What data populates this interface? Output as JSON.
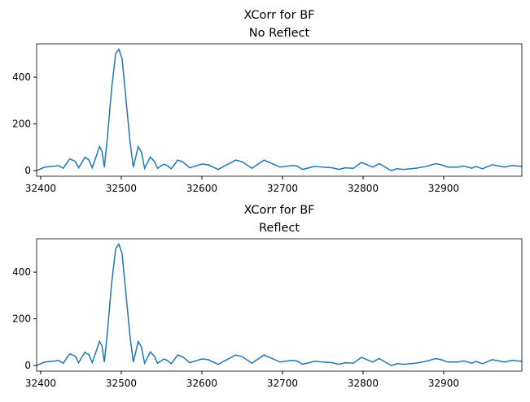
{
  "chart_data": [
    {
      "type": "line",
      "title": "XCorr for BF",
      "subtitle": "No Reflect",
      "x": [
        32395,
        32405,
        32415,
        32422,
        32428,
        32436,
        32443,
        32447,
        32455,
        32460,
        32464,
        32473,
        32476,
        32479,
        32483,
        32488,
        32493,
        32497,
        32501,
        32506,
        32511,
        32515,
        32521,
        32525,
        32529,
        32536,
        32541,
        32545,
        32553,
        32557,
        32562,
        32570,
        32576,
        32585,
        32600,
        32608,
        32620,
        32642,
        32650,
        32662,
        32677,
        32684,
        32697,
        32712,
        32718,
        32725,
        32740,
        32750,
        32762,
        32770,
        32778,
        32788,
        32798,
        32805,
        32812,
        32820,
        32830,
        32835,
        32842,
        32850,
        32865,
        32878,
        32890,
        32897,
        32905,
        32918,
        32925,
        32935,
        32940,
        32948,
        32960,
        32968,
        32975,
        32985,
        32997
      ],
      "series": [
        {
          "name": "xcorr",
          "color": "#1f77b4",
          "values": [
            0,
            15,
            18,
            22,
            10,
            50,
            40,
            12,
            57,
            45,
            12,
            103,
            85,
            15,
            150,
            350,
            500,
            520,
            480,
            300,
            120,
            15,
            103,
            80,
            10,
            58,
            40,
            10,
            28,
            22,
            8,
            45,
            38,
            12,
            28,
            25,
            5,
            45,
            38,
            10,
            45,
            35,
            15,
            22,
            20,
            5,
            18,
            15,
            12,
            5,
            12,
            10,
            35,
            25,
            15,
            30,
            10,
            0,
            8,
            5,
            10,
            18,
            30,
            25,
            15,
            15,
            20,
            10,
            18,
            8,
            25,
            20,
            15,
            22,
            18
          ]
        }
      ],
      "xlim": [
        32395,
        32997
      ],
      "ylim": [
        -24,
        543
      ],
      "xticks": [
        32400,
        32500,
        32600,
        32700,
        32800,
        32900
      ],
      "yticks": [
        0,
        200,
        400
      ]
    },
    {
      "type": "line",
      "title": "XCorr for BF",
      "subtitle": "Reflect",
      "x": [
        32395,
        32405,
        32415,
        32422,
        32428,
        32436,
        32443,
        32447,
        32455,
        32460,
        32464,
        32473,
        32476,
        32479,
        32483,
        32488,
        32493,
        32497,
        32501,
        32506,
        32511,
        32515,
        32521,
        32525,
        32529,
        32536,
        32541,
        32545,
        32553,
        32557,
        32562,
        32570,
        32576,
        32585,
        32600,
        32608,
        32620,
        32642,
        32650,
        32662,
        32677,
        32684,
        32697,
        32712,
        32718,
        32725,
        32740,
        32750,
        32762,
        32770,
        32778,
        32788,
        32798,
        32805,
        32812,
        32820,
        32830,
        32835,
        32842,
        32850,
        32865,
        32878,
        32890,
        32897,
        32905,
        32918,
        32925,
        32935,
        32940,
        32948,
        32960,
        32968,
        32975,
        32985,
        32997
      ],
      "series": [
        {
          "name": "xcorr",
          "color": "#1f77b4",
          "values": [
            0,
            15,
            18,
            22,
            10,
            50,
            40,
            12,
            57,
            45,
            12,
            103,
            85,
            15,
            150,
            350,
            500,
            520,
            480,
            300,
            120,
            15,
            103,
            80,
            10,
            58,
            40,
            10,
            28,
            22,
            8,
            45,
            38,
            12,
            28,
            25,
            5,
            45,
            38,
            10,
            45,
            35,
            15,
            22,
            20,
            5,
            18,
            15,
            12,
            5,
            12,
            10,
            35,
            25,
            15,
            30,
            10,
            0,
            8,
            5,
            10,
            18,
            30,
            25,
            15,
            15,
            20,
            10,
            18,
            8,
            25,
            20,
            15,
            22,
            18
          ]
        }
      ],
      "xlim": [
        32395,
        32997
      ],
      "ylim": [
        -24,
        543
      ],
      "xticks": [
        32400,
        32500,
        32600,
        32700,
        32800,
        32900
      ],
      "yticks": [
        0,
        200,
        400
      ]
    }
  ]
}
